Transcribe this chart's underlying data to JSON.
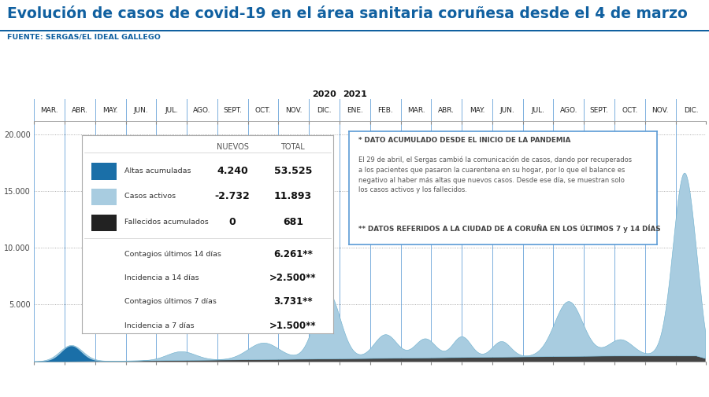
{
  "title": "Evolución de casos de covid-19 en el área sanitaria coruñesa desde el 4 de marzo",
  "source": "FUENTE: SERGAS/EL IDEAL GALLEGO",
  "title_color": "#1060a0",
  "title_fontsize": 13.5,
  "source_color": "#1060a0",
  "bg_color": "#ffffff",
  "grid_color": "#999999",
  "months": [
    "MAR.",
    "ABR.",
    "MAY.",
    "JUN.",
    "JUL.",
    "AGO.",
    "SEPT.",
    "OCT.",
    "NOV.",
    "DIC.",
    "ENE.",
    "FEB.",
    "MAR.",
    "ABR.",
    "MAY.",
    "JUN.",
    "JUL.",
    "AGO.",
    "SEPT.",
    "OCT.",
    "NOV.",
    "DIC."
  ],
  "color_active": "#a8cce0",
  "color_altas": "#1a6fa8",
  "color_fallecidos": "#444444",
  "vline_color": "#5b9bd5",
  "ylim": [
    0,
    21000
  ],
  "yticks": [
    5000,
    10000,
    15000,
    20000
  ],
  "ytick_labels": [
    "5.000",
    "10.000",
    "15.000",
    "20.000"
  ],
  "legend_box": {
    "nuevos_label": "NUEVOS",
    "total_label": "TOTAL",
    "rows": [
      {
        "color": "#1a6fa8",
        "label": "Altas acumuladas",
        "nuevos": "4.240",
        "total": "53.525"
      },
      {
        "color": "#a8cce0",
        "label": "Casos activos",
        "nuevos": "-2.732",
        "total": "11.893"
      },
      {
        "color": "#222222",
        "label": "Fallecidos acumulados",
        "nuevos": "0",
        "total": "681"
      }
    ],
    "extra_rows": [
      {
        "label": "Contagios últimos 14 días",
        "value": "6.261**"
      },
      {
        "label": "Incidencia a 14 días",
        "value": ">2.500**"
      },
      {
        "label": "Contagios últimos 7 días",
        "value": "3.731**"
      },
      {
        "label": "Incidencia a 7 días",
        "value": ">1.500**"
      }
    ]
  },
  "note_box": {
    "line1": "* DATO ACUMULADO DESDE EL INICIO DE LA PANDEMIA",
    "line2": "El 29 de abril, el Sergas cambió la comunicación de casos, dando por recuperados\na los pacientes que pasaron la cuarentena en su hogar, por lo que el balance es\nnegativo al haber más altas que nuevos casos. Desde ese día, se muestran solo\nlos casos activos y los fallecidos.",
    "line3": "** DATOS REFERIDOS A LA CIUDAD DE A CORUÑA EN LOS ÚLTIMOS 7 y 14 DÍAS"
  }
}
